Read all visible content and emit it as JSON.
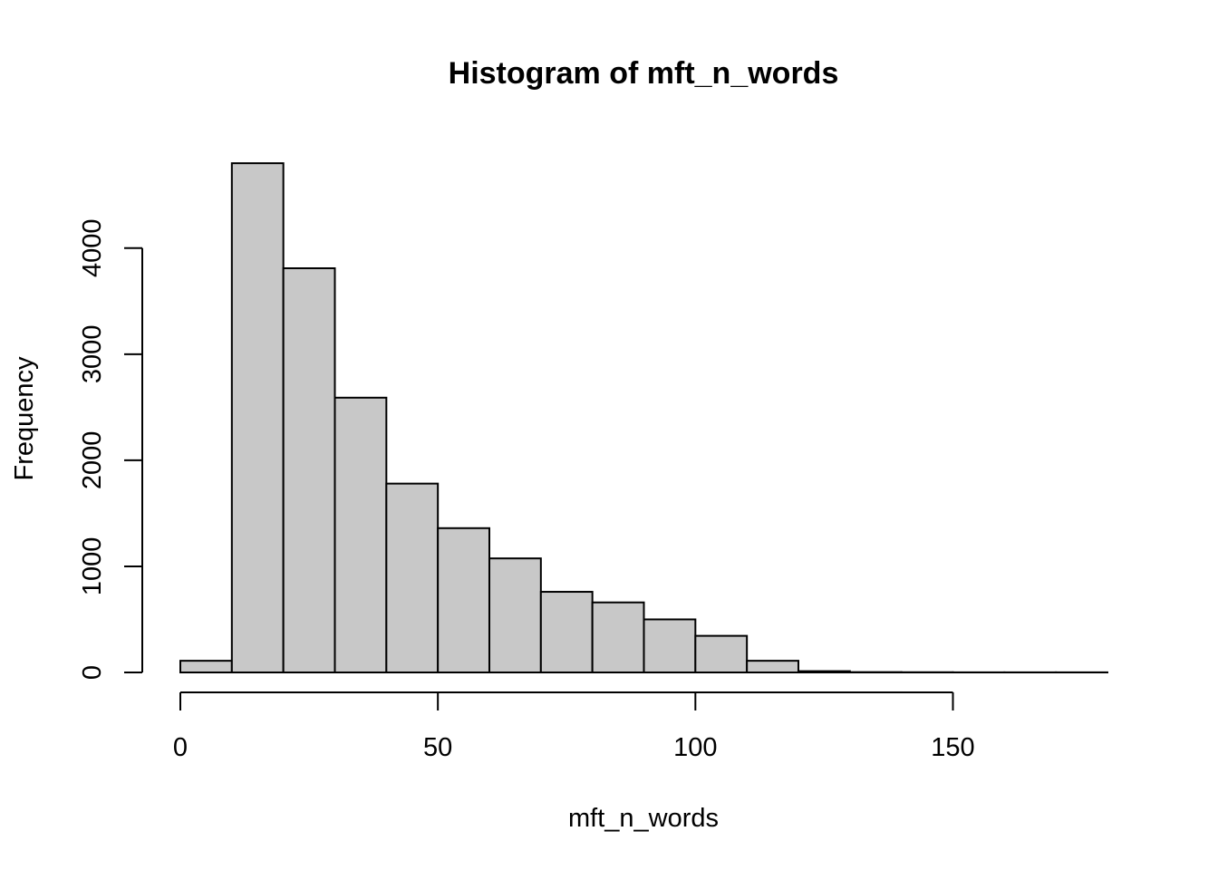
{
  "chart_data": {
    "type": "bar",
    "title": "Histogram of mft_n_words",
    "xlabel": "mft_n_words",
    "ylabel": "Frequency",
    "bin_edges": [
      0,
      10,
      20,
      30,
      40,
      50,
      60,
      70,
      80,
      90,
      100,
      110,
      120,
      130,
      140,
      150,
      160,
      170,
      180
    ],
    "values": [
      110,
      4800,
      3810,
      2590,
      1780,
      1360,
      1075,
      760,
      660,
      500,
      345,
      110,
      12,
      3,
      2,
      1,
      1,
      1
    ],
    "xlim": [
      0,
      180
    ],
    "ylim": [
      0,
      4800
    ],
    "xticks": [
      0,
      50,
      100,
      150
    ],
    "xtick_labels": [
      "0",
      "50",
      "100",
      "150"
    ],
    "yticks": [
      0,
      1000,
      2000,
      3000,
      4000
    ],
    "ytick_labels": [
      "0",
      "1000",
      "2000",
      "3000",
      "4000"
    ],
    "bar_color": "#c8c8c8",
    "edge_color": "#000000",
    "grid": false,
    "legend": "none"
  }
}
